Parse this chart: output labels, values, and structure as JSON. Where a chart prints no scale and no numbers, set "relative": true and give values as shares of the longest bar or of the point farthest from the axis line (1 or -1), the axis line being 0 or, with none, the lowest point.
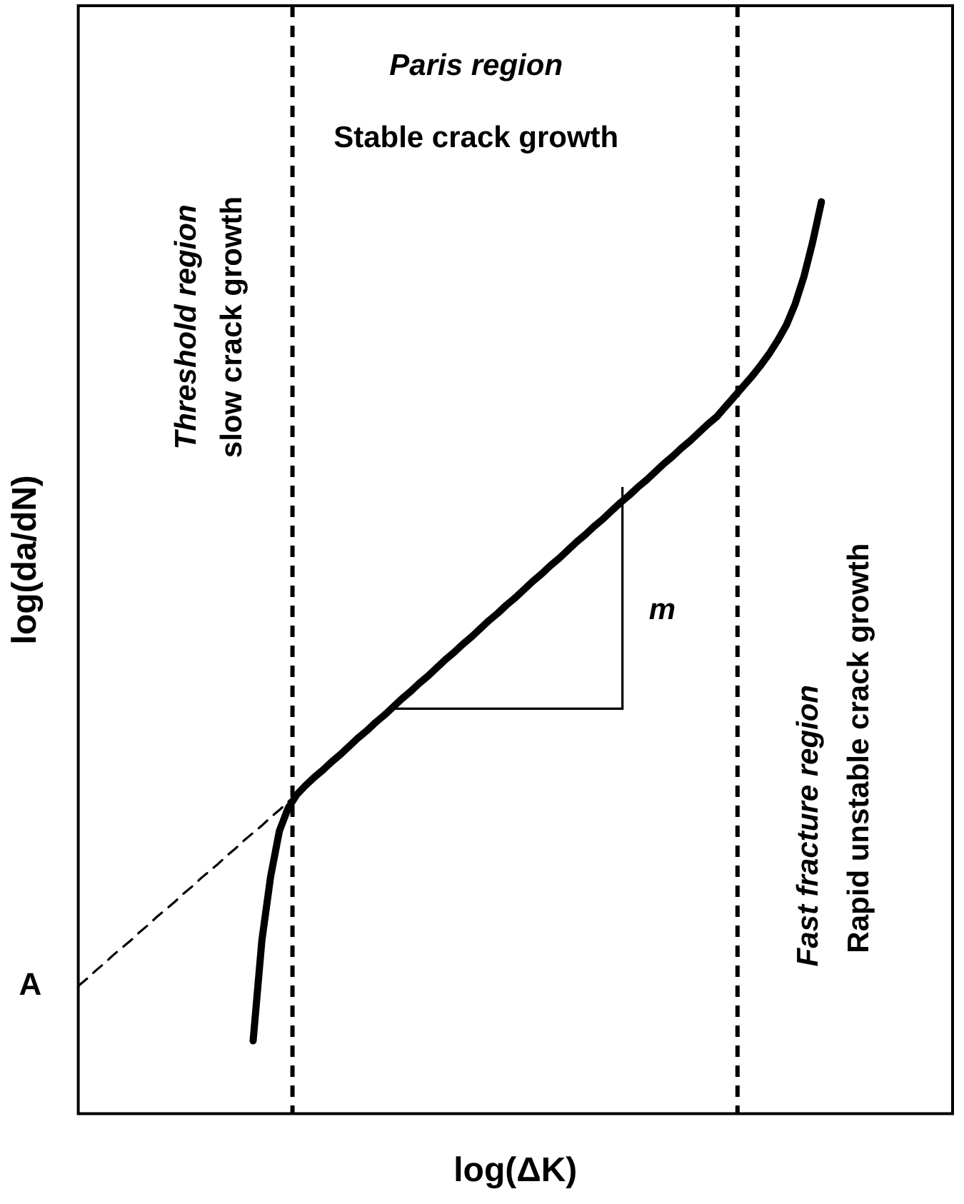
{
  "chart_data": {
    "type": "line",
    "relative": true,
    "xlabel": "log(ΔK)",
    "ylabel": "log(da/dN)",
    "categories": [
      null,
      null,
      null,
      null,
      null,
      null,
      null,
      null,
      null,
      null,
      null,
      null,
      null,
      null,
      null,
      null,
      null,
      null,
      null,
      null,
      null,
      null,
      null,
      null,
      null,
      null,
      null,
      null,
      null,
      null,
      null,
      null,
      null,
      null,
      null,
      null,
      null,
      null,
      null,
      null,
      null,
      null,
      null,
      null,
      null,
      null,
      null,
      null,
      null,
      null,
      null,
      null,
      null,
      null,
      null,
      null,
      null,
      null,
      null,
      null,
      null,
      null,
      null,
      null,
      null,
      null,
      null,
      null,
      null,
      null,
      null,
      null,
      null,
      null,
      null,
      null,
      null,
      null,
      null,
      null,
      null,
      null,
      null,
      null,
      null,
      null,
      null,
      null,
      null,
      null,
      null,
      null,
      null,
      null,
      null,
      null,
      null,
      null,
      null,
      null,
      null
    ],
    "series": [
      {
        "color": "#000000",
        "line_style": "solid",
        "values": [
          null,
          null,
          null,
          null,
          null,
          null,
          null,
          null,
          null,
          null,
          null,
          null,
          null,
          null,
          null,
          null,
          null,
          null,
          null,
          null,
          0.08,
          0.19,
          0.26,
          0.31,
          0.335,
          0.35,
          0.36,
          0.369,
          0.377,
          0.386,
          0.394,
          0.403,
          0.412,
          0.42,
          0.429,
          0.437,
          0.446,
          0.455,
          0.463,
          0.472,
          0.48,
          0.489,
          0.498,
          0.506,
          0.515,
          0.523,
          0.532,
          0.541,
          0.549,
          0.558,
          0.566,
          0.575,
          0.584,
          0.592,
          0.601,
          0.609,
          0.618,
          0.627,
          0.635,
          0.644,
          0.652,
          0.661,
          0.67,
          0.678,
          0.687,
          0.695,
          0.704,
          0.713,
          0.721,
          0.73,
          0.738,
          0.747,
          0.756,
          0.764,
          0.775,
          0.786,
          0.797,
          0.808,
          0.82,
          0.833,
          0.848,
          0.865,
          0.888,
          0.918,
          0.956,
          1.0,
          null,
          null,
          null,
          null,
          null,
          null,
          null,
          null,
          null,
          null,
          null,
          null,
          null,
          null,
          null
        ]
      },
      {
        "color": "#000000",
        "line_style": "dashed",
        "values": [
          0.14,
          0.148,
          0.157,
          0.165,
          0.174,
          0.182,
          0.19,
          0.199,
          0.207,
          0.216,
          0.224,
          0.232,
          0.241,
          0.249,
          0.258,
          0.266,
          0.274,
          0.283,
          0.291,
          0.3,
          0.308,
          0.316,
          0.325,
          0.333,
          0.342,
          0.35,
          null,
          null,
          null,
          null,
          null,
          null,
          null,
          null,
          null,
          null,
          null,
          null,
          null,
          null,
          null,
          null,
          null,
          null,
          null,
          null,
          null,
          null,
          null,
          null,
          null,
          null,
          null,
          null,
          null,
          null,
          null,
          null,
          null,
          null,
          null,
          null,
          null,
          null,
          null,
          null,
          null,
          null,
          null,
          null,
          null,
          null,
          null,
          null,
          null,
          null,
          null,
          null,
          null,
          null,
          null,
          null,
          null,
          null,
          null,
          null,
          null,
          null,
          null,
          null,
          null,
          null,
          null,
          null,
          null,
          null,
          null,
          null,
          null,
          null,
          null
        ]
      }
    ],
    "annotations": [
      "Paris region",
      "Stable crack growth",
      "Threshold region",
      "slow crack growth",
      "Fast fracture region",
      "Rapid unstable crack growth",
      "m",
      "A"
    ]
  }
}
